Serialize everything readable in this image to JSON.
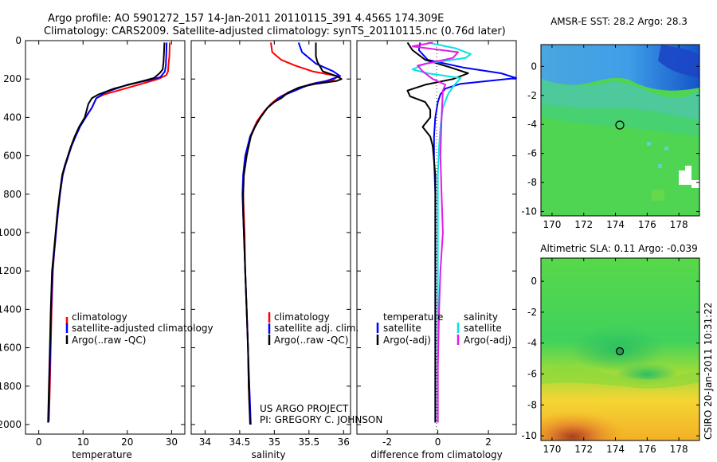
{
  "header": {
    "title_line1": "Argo profile: AO 5901272_157 14-Jan-2011 20110115_391 4.456S 174.309E",
    "title_line2": "Climatology: CARS2009. Satellite-adjusted climatology: synTS_20110115.nc (0.76d later)"
  },
  "credit": "CSIRO 20-Jan-2011 10:31:22",
  "colors": {
    "red": "#ff0000",
    "blue": "#0000ff",
    "black": "#000000",
    "cyan": "#00e5e5",
    "magenta": "#e619e6"
  },
  "chart_data": [
    {
      "type": "line",
      "id": "temperature",
      "xlabel": "temperature",
      "xlim": [
        -3,
        33
      ],
      "ylim": [
        2050,
        0
      ],
      "xticks": [
        0,
        10,
        20,
        30
      ],
      "yticks": [
        0,
        200,
        400,
        600,
        800,
        1000,
        1200,
        1400,
        1600,
        1800,
        2000
      ],
      "legend": [
        "climatology",
        "satellite-adjusted climatology",
        "Argo(..raw -QC)"
      ],
      "series": [
        {
          "name": "climatology",
          "color": "red",
          "x": [
            29.6,
            29.5,
            29.3,
            29.2,
            28.8,
            27.0,
            24.0,
            19.5,
            14.8,
            13.0,
            12.0,
            10.5,
            9.2,
            8.2,
            7.3,
            6.6,
            6.0,
            5.4,
            4.8,
            4.3,
            3.9,
            3.5,
            3.2,
            2.9,
            2.7,
            2.5,
            2.3
          ],
          "y": [
            10,
            80,
            130,
            160,
            180,
            200,
            220,
            250,
            280,
            300,
            350,
            400,
            450,
            500,
            550,
            600,
            650,
            700,
            800,
            900,
            1000,
            1100,
            1200,
            1400,
            1600,
            1800,
            1980
          ]
        },
        {
          "name": "satellite-adjusted climatology",
          "color": "blue",
          "x": [
            28.9,
            28.8,
            28.7,
            28.5,
            27.5,
            25.0,
            20.0,
            15.0,
            13.0,
            12.0,
            10.6,
            9.3,
            8.3,
            7.4,
            6.7,
            6.0,
            5.4,
            4.8,
            4.3,
            3.9,
            3.5,
            3.1,
            2.8,
            2.6,
            2.4,
            2.2
          ],
          "y": [
            10,
            80,
            130,
            160,
            190,
            205,
            230,
            270,
            300,
            350,
            400,
            450,
            500,
            550,
            600,
            650,
            700,
            800,
            900,
            1000,
            1100,
            1200,
            1400,
            1600,
            1800,
            1990
          ]
        },
        {
          "name": "Argo(..raw -QC)",
          "color": "black",
          "x": [
            28.4,
            28.3,
            28.2,
            28.0,
            27.3,
            26.0,
            22.0,
            17.0,
            13.5,
            12.0,
            11.2,
            10.4,
            9.1,
            8.1,
            7.3,
            6.6,
            5.9,
            5.3,
            4.7,
            4.2,
            3.8,
            3.4,
            3.0,
            2.7,
            2.5,
            2.3,
            2.1
          ],
          "y": [
            10,
            60,
            110,
            150,
            170,
            195,
            220,
            250,
            280,
            300,
            330,
            400,
            450,
            500,
            550,
            600,
            650,
            700,
            800,
            900,
            1000,
            1100,
            1200,
            1400,
            1600,
            1800,
            1990
          ]
        }
      ]
    },
    {
      "type": "line",
      "id": "salinity",
      "xlabel": "salinity",
      "xlim": [
        33.8,
        36.1
      ],
      "ylim": [
        2050,
        0
      ],
      "xticks": [
        34,
        34.5,
        35,
        35.5,
        36
      ],
      "legend": [
        "climatology",
        "satellite adj. clim.",
        "Argo(..raw -QC)"
      ],
      "annotation_line1": "US ARGO PROJECT",
      "annotation_line2": "PI: GREGORY C. JOHNSON",
      "series": [
        {
          "name": "climatology",
          "color": "red",
          "x": [
            34.95,
            34.97,
            35.1,
            35.3,
            35.55,
            35.92,
            35.85,
            35.6,
            35.4,
            35.2,
            35.05,
            34.95,
            34.85,
            34.75,
            34.65,
            34.6,
            34.56,
            34.55,
            34.56,
            34.57,
            34.58,
            34.6,
            34.62,
            34.63,
            34.64,
            34.66
          ],
          "y": [
            10,
            60,
            100,
            130,
            160,
            185,
            205,
            220,
            240,
            270,
            300,
            330,
            370,
            420,
            500,
            600,
            700,
            800,
            900,
            1000,
            1200,
            1400,
            1600,
            1800,
            1900,
            2000
          ]
        },
        {
          "name": "satellite adj. clim.",
          "color": "blue",
          "x": [
            35.35,
            35.4,
            35.6,
            35.85,
            35.95,
            35.75,
            35.5,
            35.3,
            35.1,
            35.0,
            34.9,
            34.8,
            34.72,
            34.65,
            34.58,
            34.55,
            34.54,
            34.55,
            34.56,
            34.58,
            34.6,
            34.62,
            34.64,
            34.66
          ],
          "y": [
            10,
            60,
            120,
            160,
            185,
            210,
            230,
            260,
            290,
            320,
            350,
            400,
            450,
            500,
            600,
            700,
            800,
            900,
            1000,
            1200,
            1400,
            1600,
            1800,
            2000
          ]
        },
        {
          "name": "Argo(..raw -QC)",
          "color": "black",
          "x": [
            35.6,
            35.6,
            35.62,
            35.7,
            35.9,
            35.97,
            35.9,
            35.6,
            35.35,
            35.2,
            35.1,
            35.0,
            34.9,
            34.8,
            34.72,
            34.66,
            34.6,
            34.56,
            34.55,
            34.55,
            34.56,
            34.58,
            34.6,
            34.62,
            34.63,
            34.65
          ],
          "y": [
            10,
            80,
            110,
            160,
            185,
            200,
            210,
            225,
            245,
            270,
            300,
            320,
            350,
            400,
            450,
            500,
            600,
            700,
            800,
            900,
            1000,
            1200,
            1400,
            1600,
            1800,
            2000
          ]
        }
      ]
    },
    {
      "type": "line",
      "id": "difference",
      "xlabel": "difference from climatology",
      "xlim": [
        -3.2,
        3.1
      ],
      "ylim": [
        2050,
        0
      ],
      "xticks": [
        -2,
        0,
        2
      ],
      "legend_temperature_title": "temperature",
      "legend_salinity_title": "salinity",
      "legend": [
        "satellite",
        "Argo(-adj)",
        "satellite",
        "Argo(-adj)"
      ],
      "series": [
        {
          "name": "temperature satellite",
          "color": "blue",
          "x": [
            -0.7,
            -0.75,
            -0.4,
            1.0,
            2.5,
            3.1,
            2.0,
            0.9,
            0.3,
            0.1,
            0.0,
            -0.1,
            -0.15,
            -0.15,
            -0.1,
            -0.1,
            -0.1,
            -0.1
          ],
          "y": [
            10,
            50,
            100,
            140,
            170,
            195,
            210,
            225,
            250,
            280,
            320,
            400,
            500,
            600,
            800,
            1000,
            1500,
            1990
          ]
        },
        {
          "name": "temperature Argo(-adj)",
          "color": "black",
          "x": [
            -1.2,
            -1.0,
            -0.5,
            0.5,
            1.2,
            0.6,
            -0.5,
            -1.2,
            -1.1,
            -0.5,
            -0.3,
            -0.3,
            -0.6,
            -0.3,
            -0.2,
            -0.1,
            -0.1,
            -0.1,
            -0.1
          ],
          "y": [
            10,
            50,
            100,
            140,
            170,
            200,
            230,
            260,
            290,
            320,
            360,
            400,
            450,
            500,
            550,
            700,
            1000,
            1500,
            1990
          ]
        },
        {
          "name": "salinity satellite",
          "color": "cyan",
          "x": [
            -0.4,
            0.7,
            1.3,
            1.1,
            -0.5,
            -1.0,
            -0.4,
            0.9,
            0.8,
            0.6,
            0.4,
            0.2,
            0.1,
            0.05,
            0.0,
            0.0,
            0.0,
            0.0
          ],
          "y": [
            10,
            40,
            70,
            90,
            120,
            150,
            170,
            195,
            210,
            240,
            280,
            350,
            450,
            550,
            700,
            1000,
            1500,
            1990
          ]
        },
        {
          "name": "salinity Argo(-adj)",
          "color": "magenta",
          "x": [
            -0.2,
            -1.0,
            0.8,
            0.6,
            -0.1,
            -0.8,
            -0.6,
            -0.2,
            0.3,
            0.2,
            0.15,
            0.1,
            0.15,
            0.2,
            0.1,
            0.05,
            0.0,
            0.0
          ],
          "y": [
            10,
            30,
            60,
            90,
            110,
            130,
            160,
            200,
            230,
            260,
            400,
            600,
            800,
            1000,
            1200,
            1400,
            1700,
            1990
          ]
        }
      ]
    },
    {
      "type": "heatmap",
      "id": "sst",
      "title": "AMSR-E SST: 28.2  Argo: 28.3",
      "xlim": [
        169.3,
        179.3
      ],
      "ylim": [
        -10.3,
        1.5
      ],
      "xticks": [
        170,
        172,
        174,
        176,
        178
      ],
      "yticks": [
        0,
        -2,
        -4,
        -6,
        -8,
        -10
      ],
      "float_position": [
        174.309,
        -4.456
      ]
    },
    {
      "type": "heatmap",
      "id": "sla",
      "title": "Altimetric SLA: 0.11  Argo: -0.039",
      "xlim": [
        169.3,
        179.3
      ],
      "ylim": [
        -10.3,
        1.5
      ],
      "xticks": [
        170,
        172,
        174,
        176,
        178
      ],
      "yticks": [
        0,
        -2,
        -4,
        -6,
        -8,
        -10
      ],
      "float_position": [
        174.309,
        -4.456
      ]
    }
  ]
}
